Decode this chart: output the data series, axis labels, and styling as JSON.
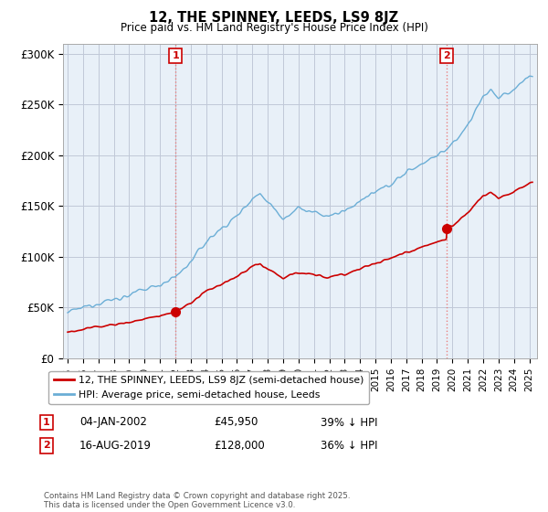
{
  "title": "12, THE SPINNEY, LEEDS, LS9 8JZ",
  "subtitle": "Price paid vs. HM Land Registry's House Price Index (HPI)",
  "xlim": [
    1994.7,
    2025.5
  ],
  "ylim": [
    0,
    310000
  ],
  "yticks": [
    0,
    50000,
    100000,
    150000,
    200000,
    250000,
    300000
  ],
  "ytick_labels": [
    "£0",
    "£50K",
    "£100K",
    "£150K",
    "£200K",
    "£250K",
    "£300K"
  ],
  "xtick_years": [
    1995,
    1996,
    1997,
    1998,
    1999,
    2000,
    2001,
    2002,
    2003,
    2004,
    2005,
    2006,
    2007,
    2008,
    2009,
    2010,
    2011,
    2012,
    2013,
    2014,
    2015,
    2016,
    2017,
    2018,
    2019,
    2020,
    2021,
    2022,
    2023,
    2024,
    2025
  ],
  "sale1_x": 2002.017,
  "sale1_y": 45950,
  "sale1_label": "1",
  "sale1_date": "04-JAN-2002",
  "sale1_price": "£45,950",
  "sale1_hpi": "39% ↓ HPI",
  "sale2_x": 2019.622,
  "sale2_y": 128000,
  "sale2_label": "2",
  "sale2_date": "16-AUG-2019",
  "sale2_price": "£128,000",
  "sale2_hpi": "36% ↓ HPI",
  "line_color_hpi": "#6baed6",
  "line_color_price": "#cc0000",
  "vline_color": "#e88080",
  "marker_color_price": "#cc0000",
  "legend_label_price": "12, THE SPINNEY, LEEDS, LS9 8JZ (semi-detached house)",
  "legend_label_hpi": "HPI: Average price, semi-detached house, Leeds",
  "footer": "Contains HM Land Registry data © Crown copyright and database right 2025.\nThis data is licensed under the Open Government Licence v3.0.",
  "bg_color": "#e8f0f8",
  "grid_color": "#c0c8d8"
}
